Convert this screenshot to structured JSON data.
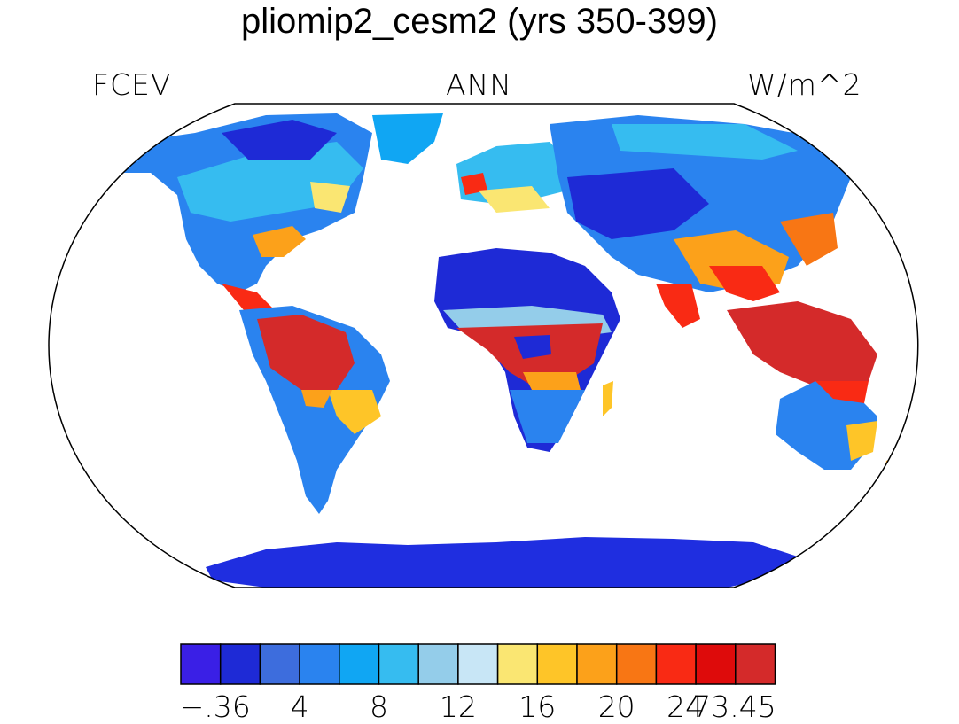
{
  "title": "pliomip2_cesm2 (yrs 350-399)",
  "variable": "FCEV",
  "season": "ANN",
  "units": "W/m^2",
  "colorbar": {
    "ticks": [
      "−.36",
      "4",
      "8",
      "12",
      "16",
      "20",
      "24",
      "73.45"
    ],
    "colors": [
      "#3a1fe6",
      "#1e2ad6",
      "#3d6ddd",
      "#2a83ef",
      "#10a6f3",
      "#36bcf0",
      "#94cdea",
      "#c8e6f6",
      "#fae672",
      "#fec528",
      "#fca11a",
      "#f87614",
      "#f92a14",
      "#de0b0b",
      "#d42a2a"
    ]
  }
}
